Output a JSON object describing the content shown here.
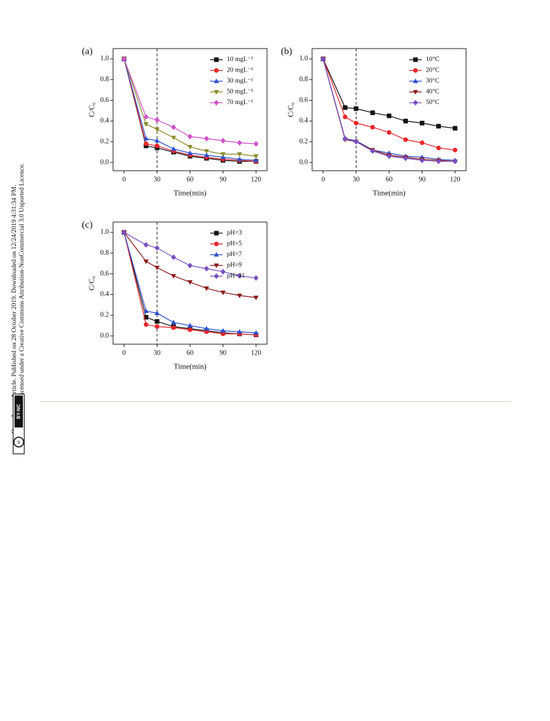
{
  "sidebar": {
    "line1": "Open Access Article. Published on 28 October 2019. Downloaded on 12/24/2019 4:31:34 PM.",
    "line2": "This article is licensed under a Creative Commons Attribution-NonCommercial 3.0 Unported Licence.",
    "badge": "BY-NC"
  },
  "chart_data": [
    {
      "type": "line",
      "panel_label": "(a)",
      "x_label": "Time(min)",
      "y_label": "C/C₀",
      "x": [
        0,
        20,
        30,
        45,
        60,
        75,
        90,
        105,
        120
      ],
      "xlim": [
        -10,
        130
      ],
      "xticks": [
        0,
        30,
        60,
        90,
        120
      ],
      "ylim": [
        -0.08,
        1.1
      ],
      "yticks": [
        {
          "value": 0,
          "label": "0.0"
        },
        {
          "value": 0.2,
          "label": "0.2"
        },
        {
          "value": 0.4,
          "label": "0.4"
        },
        {
          "value": 0.6,
          "label": "0.6"
        },
        {
          "value": 0.8,
          "label": "0.8"
        },
        {
          "value": 1,
          "label": "1.0"
        }
      ],
      "vline": 30,
      "legend": "upper right",
      "series": [
        {
          "name": "10 mgL⁻¹",
          "color": "#111111",
          "marker": "square",
          "values": [
            1.0,
            0.16,
            0.14,
            0.1,
            0.06,
            0.04,
            0.02,
            0.01,
            0.01
          ]
        },
        {
          "name": "20 mgL⁻¹",
          "color": "#e8262a",
          "marker": "circle",
          "values": [
            1.0,
            0.18,
            0.16,
            0.11,
            0.07,
            0.05,
            0.03,
            0.02,
            0.01
          ]
        },
        {
          "name": "30 mgL⁻¹",
          "color": "#2e4fd0",
          "marker": "triangle-up",
          "values": [
            1.0,
            0.23,
            0.21,
            0.13,
            0.09,
            0.07,
            0.05,
            0.03,
            0.02
          ]
        },
        {
          "name": "50 mgL⁻¹",
          "color": "#8a8a2a",
          "marker": "triangle-down",
          "values": [
            1.0,
            0.37,
            0.32,
            0.24,
            0.15,
            0.11,
            0.08,
            0.08,
            0.06
          ]
        },
        {
          "name": "70 mgL⁻¹",
          "color": "#d050c8",
          "marker": "diamond",
          "values": [
            1.0,
            0.44,
            0.41,
            0.34,
            0.25,
            0.23,
            0.21,
            0.19,
            0.18
          ]
        }
      ]
    },
    {
      "type": "line",
      "panel_label": "(b)",
      "x_label": "Time(min)",
      "y_label": "C/C₀",
      "x": [
        0,
        20,
        30,
        45,
        60,
        75,
        90,
        105,
        120
      ],
      "xlim": [
        -10,
        130
      ],
      "xticks": [
        0,
        30,
        60,
        90,
        120
      ],
      "ylim": [
        -0.08,
        1.1
      ],
      "yticks": [
        {
          "value": 0,
          "label": "0.0"
        },
        {
          "value": 0.2,
          "label": "0.2"
        },
        {
          "value": 0.4,
          "label": "0.4"
        },
        {
          "value": 0.6,
          "label": "0.6"
        },
        {
          "value": 0.8,
          "label": "0.8"
        },
        {
          "value": 1,
          "label": "1.0"
        }
      ],
      "vline": 30,
      "legend": "upper right",
      "series": [
        {
          "name": "10°C",
          "color": "#111111",
          "marker": "square",
          "values": [
            1.0,
            0.53,
            0.52,
            0.48,
            0.45,
            0.4,
            0.38,
            0.35,
            0.33
          ]
        },
        {
          "name": "20°C",
          "color": "#e8262a",
          "marker": "circle",
          "values": [
            1.0,
            0.44,
            0.38,
            0.34,
            0.29,
            0.22,
            0.19,
            0.14,
            0.12
          ]
        },
        {
          "name": "30°C",
          "color": "#2e4fd0",
          "marker": "triangle-up",
          "values": [
            1.0,
            0.23,
            0.21,
            0.12,
            0.09,
            0.06,
            0.05,
            0.03,
            0.02
          ]
        },
        {
          "name": "40°C",
          "color": "#8b1a1a",
          "marker": "triangle-down",
          "values": [
            1.0,
            0.22,
            0.2,
            0.12,
            0.07,
            0.05,
            0.03,
            0.02,
            0.01
          ]
        },
        {
          "name": "50°C",
          "color": "#7a4fc0",
          "marker": "diamond",
          "values": [
            1.0,
            0.23,
            0.2,
            0.11,
            0.06,
            0.04,
            0.02,
            0.01,
            0.01
          ]
        }
      ]
    },
    {
      "type": "line",
      "panel_label": "(c)",
      "x_label": "Time(min)",
      "y_label": "C/C₀",
      "x": [
        0,
        20,
        30,
        45,
        60,
        75,
        90,
        105,
        120
      ],
      "xlim": [
        -10,
        130
      ],
      "xticks": [
        0,
        30,
        60,
        90,
        120
      ],
      "ylim": [
        -0.08,
        1.1
      ],
      "yticks": [
        {
          "value": 0,
          "label": "0.0"
        },
        {
          "value": 0.2,
          "label": "0.2"
        },
        {
          "value": 0.4,
          "label": "0.4"
        },
        {
          "value": 0.6,
          "label": "0.6"
        },
        {
          "value": 0.8,
          "label": "0.8"
        },
        {
          "value": 1,
          "label": "1.0"
        }
      ],
      "vline": 30,
      "legend": "upper right",
      "series": [
        {
          "name": "pH=3",
          "color": "#111111",
          "marker": "square",
          "values": [
            1.0,
            0.18,
            0.14,
            0.09,
            0.07,
            0.05,
            0.03,
            0.02,
            0.01
          ]
        },
        {
          "name": "pH=5",
          "color": "#e8262a",
          "marker": "circle",
          "values": [
            1.0,
            0.11,
            0.09,
            0.08,
            0.06,
            0.04,
            0.02,
            0.02,
            0.01
          ]
        },
        {
          "name": "pH=7",
          "color": "#2e4fd0",
          "marker": "triangle-up",
          "values": [
            1.0,
            0.24,
            0.22,
            0.13,
            0.1,
            0.07,
            0.05,
            0.04,
            0.03
          ]
        },
        {
          "name": "pH=9",
          "color": "#8b1a1a",
          "marker": "triangle-down",
          "values": [
            1.0,
            0.72,
            0.66,
            0.58,
            0.52,
            0.46,
            0.42,
            0.39,
            0.37
          ]
        },
        {
          "name": "pH=11",
          "color": "#7a4fc0",
          "marker": "diamond",
          "values": [
            1.0,
            0.88,
            0.85,
            0.76,
            0.68,
            0.65,
            0.62,
            0.58,
            0.56
          ]
        }
      ]
    }
  ]
}
